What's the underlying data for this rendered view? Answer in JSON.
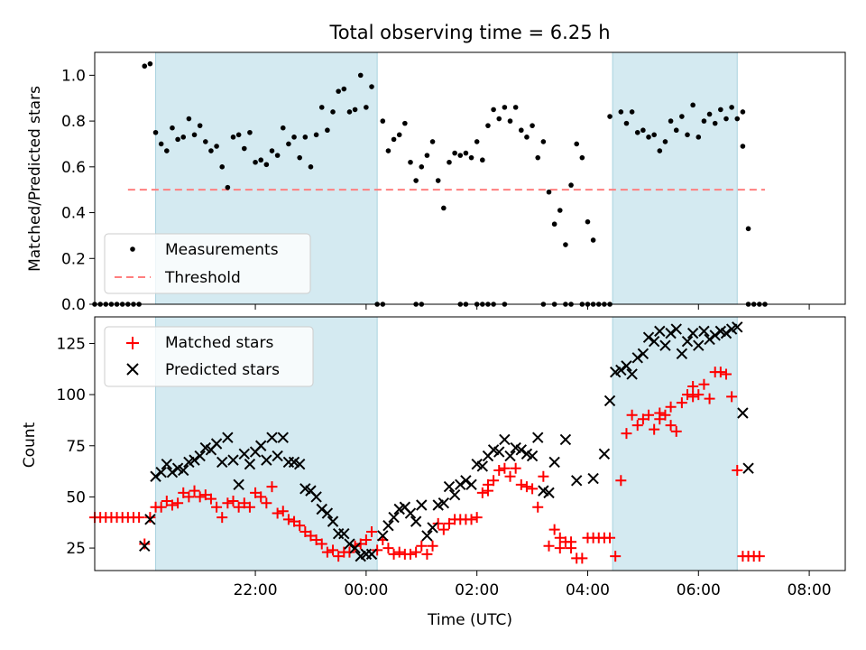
{
  "colors": {
    "shade": "#d4eaf1",
    "shade_edge": "#a9d3df",
    "threshold": "#ff7f7f",
    "measurement": "#000000",
    "matched": "#ff0000",
    "predicted": "#000000"
  },
  "chart_data": [
    {
      "type": "scatter",
      "title": "Total observing time = 6.25 h",
      "ylabel": "Matched/Predicted stars",
      "xlabel": "",
      "xlim": [
        -2.9,
        10.65
      ],
      "ylim": [
        0,
        1.1
      ],
      "yticks": [
        0.0,
        0.2,
        0.4,
        0.6,
        0.8,
        1.0
      ],
      "ytick_labels": [
        "0.0",
        "0.2",
        "0.4",
        "0.6",
        "0.8",
        "1.0"
      ],
      "grid": false,
      "legend": {
        "position": "lower-left",
        "entries": [
          "Measurements",
          "Threshold"
        ]
      },
      "shaded_ranges_hours": [
        [
          -1.8,
          2.2
        ],
        [
          6.45,
          8.7
        ]
      ],
      "threshold": {
        "name": "Threshold",
        "y": 0.5,
        "x_range": [
          -2.3,
          9.2
        ]
      },
      "series": [
        {
          "name": "Measurements",
          "marker": "dot",
          "x": [
            -2.0,
            -1.9,
            -1.8,
            -1.7,
            -1.6,
            -1.5,
            -1.4,
            -1.3,
            -1.2,
            -1.1,
            -1.0,
            -0.9,
            -0.8,
            -0.7,
            -0.6,
            -0.5,
            -0.4,
            -0.3,
            -0.2,
            -0.1,
            0.0,
            0.1,
            0.2,
            0.3,
            0.4,
            0.5,
            0.6,
            0.7,
            0.8,
            0.9,
            1.0,
            1.1,
            1.2,
            1.3,
            1.4,
            1.5,
            1.6,
            1.7,
            1.8,
            1.9,
            2.0,
            2.1,
            2.3,
            2.4,
            2.5,
            2.6,
            2.7,
            2.8,
            2.9,
            3.0,
            3.1,
            3.2,
            3.3,
            3.4,
            3.5,
            3.6,
            3.7,
            3.8,
            3.9,
            4.0,
            4.1,
            4.2,
            4.3,
            4.4,
            4.5,
            4.6,
            4.7,
            4.8,
            4.9,
            5.0,
            5.1,
            5.2,
            5.3,
            5.4,
            5.5,
            5.6,
            5.7,
            5.8,
            5.9,
            6.0,
            6.1,
            6.4,
            6.6,
            6.7,
            6.8,
            6.9,
            7.0,
            7.1,
            7.2,
            7.3,
            7.4,
            7.5,
            7.6,
            7.7,
            7.8,
            7.9,
            8.0,
            8.1,
            8.2,
            8.3,
            8.4,
            8.5,
            8.6,
            8.7,
            8.8
          ],
          "y": [
            1.04,
            1.05,
            0.75,
            0.7,
            0.67,
            0.77,
            0.72,
            0.73,
            0.81,
            0.74,
            0.78,
            0.71,
            0.67,
            0.69,
            0.6,
            0.51,
            0.73,
            0.74,
            0.68,
            0.75,
            0.62,
            0.63,
            0.61,
            0.67,
            0.65,
            0.77,
            0.7,
            0.73,
            0.64,
            0.73,
            0.6,
            0.74,
            0.86,
            0.76,
            0.84,
            0.93,
            0.94,
            0.84,
            0.85,
            1.0,
            0.86,
            0.95,
            0.8,
            0.67,
            0.72,
            0.74,
            0.79,
            0.62,
            0.54,
            0.6,
            0.65,
            0.71,
            0.54,
            0.42,
            0.62,
            0.66,
            0.65,
            0.66,
            0.64,
            0.71,
            0.63,
            0.78,
            0.85,
            0.81,
            0.86,
            0.8,
            0.86,
            0.76,
            0.73,
            0.78,
            0.64,
            0.71,
            0.49,
            0.35,
            0.41,
            0.26,
            0.52,
            0.7,
            0.64,
            0.36,
            0.28,
            0.82,
            0.84,
            0.79,
            0.84,
            0.75,
            0.76,
            0.73,
            0.74,
            0.67,
            0.71,
            0.8,
            0.76,
            0.82,
            0.74,
            0.87,
            0.73,
            0.8,
            0.83,
            0.79,
            0.85,
            0.81,
            0.86,
            0.81,
            0.84
          ],
          "zero_x": [
            -2.9,
            -2.8,
            -2.7,
            -2.6,
            -2.5,
            -2.4,
            -2.3,
            -2.2,
            -2.1,
            2.2,
            2.3,
            2.9,
            3.0,
            3.7,
            3.8,
            4.0,
            4.1,
            4.2,
            4.3,
            4.5,
            5.2,
            5.4,
            5.6,
            5.7,
            5.9,
            6.0,
            6.1,
            6.2,
            6.3,
            6.4,
            8.9,
            9.0,
            9.1,
            9.2
          ]
        },
        {
          "name": "tail",
          "marker": "dot",
          "x": [
            8.8,
            8.9
          ],
          "y": [
            0.69,
            0.33
          ]
        }
      ]
    },
    {
      "type": "scatter",
      "title": "",
      "xlabel": "Time (UTC)",
      "ylabel": "Count",
      "xlim": [
        -2.9,
        10.65
      ],
      "ylim": [
        14,
        138
      ],
      "yticks": [
        25,
        50,
        75,
        100,
        125
      ],
      "ytick_labels": [
        "25",
        "50",
        "75",
        "100",
        "125"
      ],
      "xticks_hours": [
        0,
        2,
        4,
        6,
        8,
        10,
        12
      ],
      "xtick_labels": [
        "22:00",
        "00:00",
        "02:00",
        "04:00",
        "06:00",
        "08:00"
      ],
      "grid": false,
      "legend": {
        "position": "upper-left",
        "entries": [
          "Matched stars",
          "Predicted stars"
        ]
      },
      "shaded_ranges_hours": [
        [
          -1.8,
          2.2
        ],
        [
          6.45,
          8.7
        ]
      ],
      "series": [
        {
          "name": "Matched stars",
          "marker": "plus",
          "x": [
            -2.9,
            -2.8,
            -2.7,
            -2.6,
            -2.5,
            -2.4,
            -2.3,
            -2.2,
            -2.1,
            -2.0,
            -1.9,
            -1.8,
            -1.7,
            -1.6,
            -1.5,
            -1.4,
            -1.3,
            -1.2,
            -1.1,
            -1.0,
            -0.9,
            -0.8,
            -0.7,
            -0.6,
            -0.5,
            -0.4,
            -0.3,
            -0.2,
            -0.1,
            0.0,
            0.1,
            0.2,
            0.3,
            0.4,
            0.5,
            0.6,
            0.7,
            0.8,
            0.9,
            1.0,
            1.1,
            1.2,
            1.3,
            1.4,
            1.5,
            1.6,
            1.7,
            1.8,
            1.9,
            2.0,
            2.1,
            2.2,
            2.3,
            2.4,
            2.5,
            2.6,
            2.7,
            2.8,
            2.9,
            3.0,
            3.1,
            3.2,
            3.3,
            3.4,
            3.5,
            3.6,
            3.7,
            3.8,
            3.9,
            4.0,
            4.1,
            4.2,
            4.3,
            4.4,
            4.5,
            4.6,
            4.7,
            4.8,
            4.9,
            5.0,
            5.1,
            5.2,
            5.3,
            5.4,
            5.5,
            5.6,
            5.7,
            5.8,
            5.9,
            6.0,
            6.1,
            6.2,
            6.3,
            6.4,
            6.5,
            6.6,
            6.7,
            6.8,
            6.9,
            7.0,
            7.1,
            7.2,
            7.3,
            7.4,
            7.5,
            7.6,
            7.7,
            7.8,
            7.9,
            8.0,
            8.1,
            8.2,
            8.3,
            8.4,
            8.5,
            8.6,
            8.7,
            8.8,
            8.9,
            9.0,
            9.1
          ],
          "y": [
            40,
            40,
            40,
            40,
            40,
            40,
            40,
            40,
            40,
            27,
            40,
            45,
            45,
            48,
            46,
            47,
            52,
            50,
            53,
            50,
            51,
            49,
            45,
            40,
            47,
            48,
            45,
            47,
            45,
            52,
            50,
            47,
            55,
            42,
            43,
            39,
            38,
            36,
            33,
            31,
            29,
            27,
            23,
            24,
            21,
            23,
            23,
            26,
            27,
            29,
            33,
            24,
            29,
            25,
            22,
            23,
            22,
            22,
            23,
            26,
            22,
            26,
            37,
            34,
            37,
            39,
            39,
            39,
            39,
            40,
            52,
            56,
            58,
            63,
            64,
            60,
            64,
            56,
            55,
            54,
            45,
            60,
            26,
            34,
            25,
            28,
            28,
            20,
            20,
            30,
            30,
            30,
            30,
            30,
            21,
            58,
            81,
            90,
            85,
            88,
            90,
            83,
            88,
            90,
            94,
            82,
            96,
            100,
            99,
            100,
            105,
            98,
            111,
            111,
            110,
            99,
            63,
            21,
            21,
            21,
            21
          ],
          "xy_extra": [
            [
              4.2,
              53
            ],
            [
              5.7,
              25
            ],
            [
              5.5,
              30
            ],
            [
              7.3,
              91
            ],
            [
              7.5,
              85
            ],
            [
              7.9,
              104
            ]
          ]
        },
        {
          "name": "Predicted stars",
          "marker": "x",
          "x": [
            -2.0,
            -1.9,
            -1.8,
            -1.7,
            -1.6,
            -1.5,
            -1.4,
            -1.3,
            -1.2,
            -1.1,
            -1.0,
            -0.9,
            -0.8,
            -0.7,
            -0.6,
            -0.5,
            -0.4,
            -0.3,
            -0.2,
            -0.1,
            0.0,
            0.1,
            0.2,
            0.3,
            0.4,
            0.5,
            0.6,
            0.7,
            0.8,
            0.9,
            1.0,
            1.1,
            1.2,
            1.3,
            1.4,
            1.5,
            1.6,
            1.7,
            1.8,
            1.9,
            2.0,
            2.1,
            2.3,
            2.4,
            2.5,
            2.6,
            2.7,
            2.8,
            2.9,
            3.0,
            3.1,
            3.2,
            3.3,
            3.4,
            3.5,
            3.6,
            3.7,
            3.8,
            3.9,
            4.0,
            4.1,
            4.2,
            4.3,
            4.4,
            4.5,
            4.6,
            4.7,
            4.8,
            4.9,
            5.0,
            5.1,
            5.2,
            5.3,
            5.4,
            5.6,
            5.8,
            6.1,
            6.3,
            6.4,
            6.5,
            6.6,
            6.7,
            6.8,
            6.9,
            7.0,
            7.1,
            7.2,
            7.3,
            7.4,
            7.5,
            7.6,
            7.7,
            7.8,
            7.9,
            8.0,
            8.1,
            8.2,
            8.3,
            8.4,
            8.5,
            8.6,
            8.7,
            8.8,
            8.9
          ],
          "y": [
            26,
            39,
            60,
            62,
            66,
            62,
            64,
            63,
            67,
            68,
            70,
            74,
            73,
            76,
            67,
            79,
            68,
            56,
            71,
            66,
            72,
            75,
            68,
            79,
            70,
            79,
            67,
            67,
            66,
            54,
            53,
            50,
            44,
            42,
            38,
            32,
            32,
            27,
            25,
            21,
            22,
            22,
            31,
            36,
            40,
            44,
            45,
            42,
            38,
            46,
            31,
            35,
            46,
            47,
            55,
            51,
            56,
            58,
            56,
            66,
            65,
            70,
            73,
            72,
            78,
            70,
            74,
            73,
            71,
            70,
            79,
            53,
            52,
            67,
            78,
            58,
            59,
            71,
            97,
            111,
            112,
            114,
            110,
            118,
            120,
            128,
            126,
            131,
            124,
            130,
            132,
            120,
            126,
            130,
            124,
            131,
            127,
            129,
            131,
            130,
            132,
            133,
            91,
            64
          ]
        }
      ]
    }
  ]
}
